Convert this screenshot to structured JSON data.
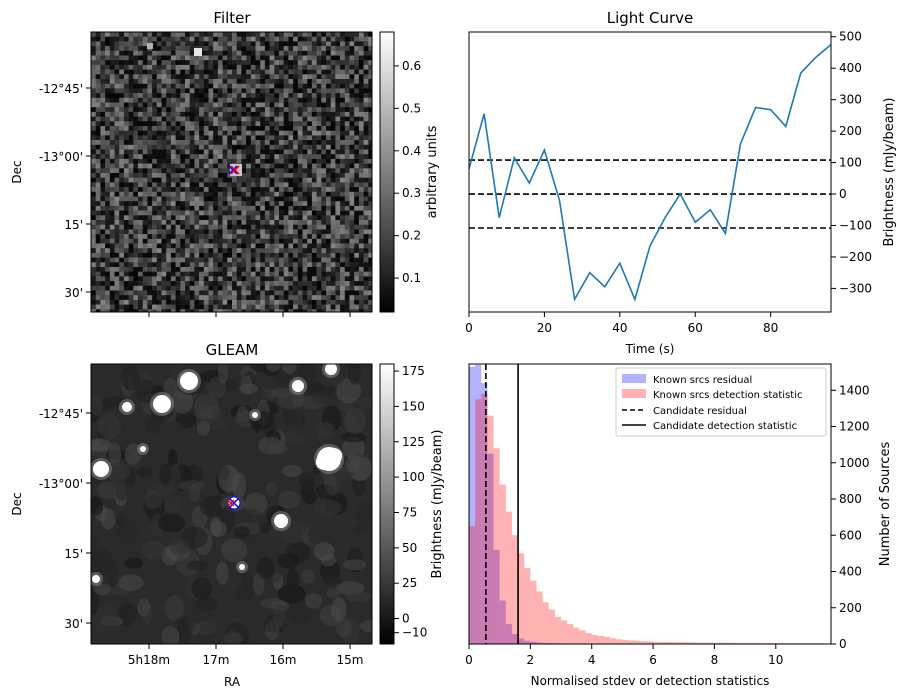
{
  "chart_data": [
    {
      "type": "heatmap",
      "title": "Filter",
      "ylabel": "Dec",
      "xlabel": "",
      "ytick_labels": [
        "-12°45'",
        "-13°00'",
        "15'",
        "30'"
      ],
      "colorbar": {
        "label": "arbitrary units",
        "range": [
          0.02,
          0.68
        ],
        "ticks": [
          0.1,
          0.2,
          0.3,
          0.4,
          0.5,
          0.6
        ],
        "tick_labels": [
          "0.1",
          "0.2",
          "0.3",
          "0.4",
          "0.5",
          "0.6"
        ],
        "colormap": "gray"
      },
      "marker": {
        "shape": "x",
        "color": "#ff0000"
      },
      "circle_marker": {
        "shape": "x-in-circle",
        "color": "#0000ff"
      }
    },
    {
      "type": "line",
      "title": "Light Curve",
      "xlabel": "Time (s)",
      "ylabel": "Brightness (mJy/beam)",
      "xlim": [
        0,
        96
      ],
      "ylim": [
        -375,
        515
      ],
      "xticks": [
        0,
        20,
        40,
        60,
        80
      ],
      "yticks": [
        -300,
        -200,
        -100,
        0,
        100,
        200,
        300,
        400,
        500
      ],
      "line_color": "#1f77b4",
      "x": [
        0,
        4,
        8,
        12,
        16,
        20,
        24,
        28,
        32,
        36,
        40,
        44,
        48,
        52,
        56,
        60,
        64,
        68,
        72,
        76,
        80,
        84,
        88,
        92,
        96
      ],
      "y": [
        80,
        255,
        -75,
        115,
        35,
        140,
        -20,
        -335,
        -250,
        -295,
        -220,
        -335,
        -165,
        -75,
        0,
        -90,
        -50,
        -125,
        160,
        275,
        268,
        215,
        385,
        435,
        475
      ],
      "hlines": [
        {
          "y": 108,
          "style": "dashed",
          "color": "#000000"
        },
        {
          "y": 0,
          "style": "dashed",
          "color": "#000000"
        },
        {
          "y": -108,
          "style": "dashed",
          "color": "#000000"
        }
      ]
    },
    {
      "type": "heatmap",
      "title": "GLEAM",
      "xlabel": "RA",
      "ylabel": "Dec",
      "xtick_labels": [
        "5h18m",
        "17m",
        "16m",
        "15m"
      ],
      "ytick_labels": [
        "-12°45'",
        "-13°00'",
        "15'",
        "30'"
      ],
      "colorbar": {
        "label": "Brightness (mJy/beam)",
        "range": [
          -18,
          180
        ],
        "ticks": [
          0,
          25,
          50,
          75,
          100,
          125,
          150,
          175
        ],
        "tick_labels": [
          "0",
          "25",
          "50",
          "75",
          "100",
          "125",
          "150",
          "175"
        ],
        "extra_tick_label": "−10",
        "colormap": "gray"
      }
    },
    {
      "type": "bar",
      "title": "",
      "xlabel": "Normalised stdev or detection statistics",
      "ylabel": "Number of Sources",
      "xlim": [
        0,
        11.8
      ],
      "ylim": [
        0,
        1545
      ],
      "xticks": [
        0,
        2,
        4,
        6,
        8,
        10
      ],
      "yticks": [
        0,
        200,
        400,
        600,
        800,
        1000,
        1200,
        1400
      ],
      "bin_width": 0.2,
      "series": [
        {
          "name": "Known srcs residual",
          "color": "#0000ff",
          "alpha": 0.3,
          "values": [
            1530,
            1540,
            1440,
            1050,
            520,
            240,
            110,
            55,
            30,
            18,
            12,
            8,
            6,
            5,
            4,
            3,
            3,
            2,
            2,
            2,
            1,
            1,
            1,
            1,
            1,
            1,
            0,
            0,
            0,
            0,
            0,
            0,
            0,
            0,
            0,
            0,
            0,
            0,
            0,
            0,
            0,
            0,
            0,
            0,
            0,
            0,
            0,
            0,
            0,
            0,
            0,
            0,
            0,
            0,
            0,
            0,
            0,
            0,
            0
          ]
        },
        {
          "name": "Known srcs detection statistic",
          "color": "#ff0000",
          "alpha": 0.3,
          "values": [
            650,
            1350,
            1380,
            1260,
            1080,
            880,
            730,
            600,
            500,
            420,
            350,
            290,
            230,
            190,
            150,
            130,
            110,
            90,
            75,
            60,
            50,
            45,
            40,
            32,
            26,
            22,
            20,
            18,
            16,
            15,
            12,
            12,
            12,
            10,
            10,
            9,
            9,
            8,
            8,
            8,
            7,
            7,
            7,
            6,
            6,
            6,
            6,
            5,
            5,
            5,
            5,
            5,
            4,
            4,
            4,
            4,
            4,
            4,
            3
          ]
        }
      ],
      "vlines": [
        {
          "name": "Candidate residual",
          "x": 0.55,
          "style": "dashed",
          "color": "#000000"
        },
        {
          "name": "Candidate detection statistic",
          "x": 1.6,
          "style": "solid",
          "color": "#000000"
        }
      ],
      "legend_position": "top-right"
    }
  ]
}
